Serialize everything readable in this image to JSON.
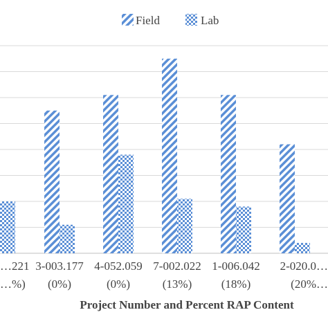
{
  "chart_data": {
    "type": "bar",
    "categories": [
      {
        "code": "…221",
        "pct": "…%)"
      },
      {
        "code": "3-003.177",
        "pct": "(0%)"
      },
      {
        "code": "4-052.059",
        "pct": "(0%)"
      },
      {
        "code": "7-002.022",
        "pct": "(13%)"
      },
      {
        "code": "1-006.042",
        "pct": "(18%)"
      },
      {
        "code": "2-020.0…",
        "pct": "(20%…"
      }
    ],
    "series": [
      {
        "name": "Field",
        "values": [
          0,
          55,
          61,
          75,
          61,
          42
        ],
        "pattern": "diagonal-stripes"
      },
      {
        "name": "Lab",
        "values": [
          20,
          11,
          38,
          21,
          18,
          4
        ],
        "pattern": "checkerboard"
      }
    ],
    "xlabel": "Project Number and Percent RAP Content",
    "ylabel": "",
    "ylim": [
      0,
      80
    ],
    "grid": true,
    "legend_position": "top",
    "colors": {
      "series": "#5b8fd6",
      "grid": "#d9d9d9",
      "text": "#444444"
    }
  }
}
